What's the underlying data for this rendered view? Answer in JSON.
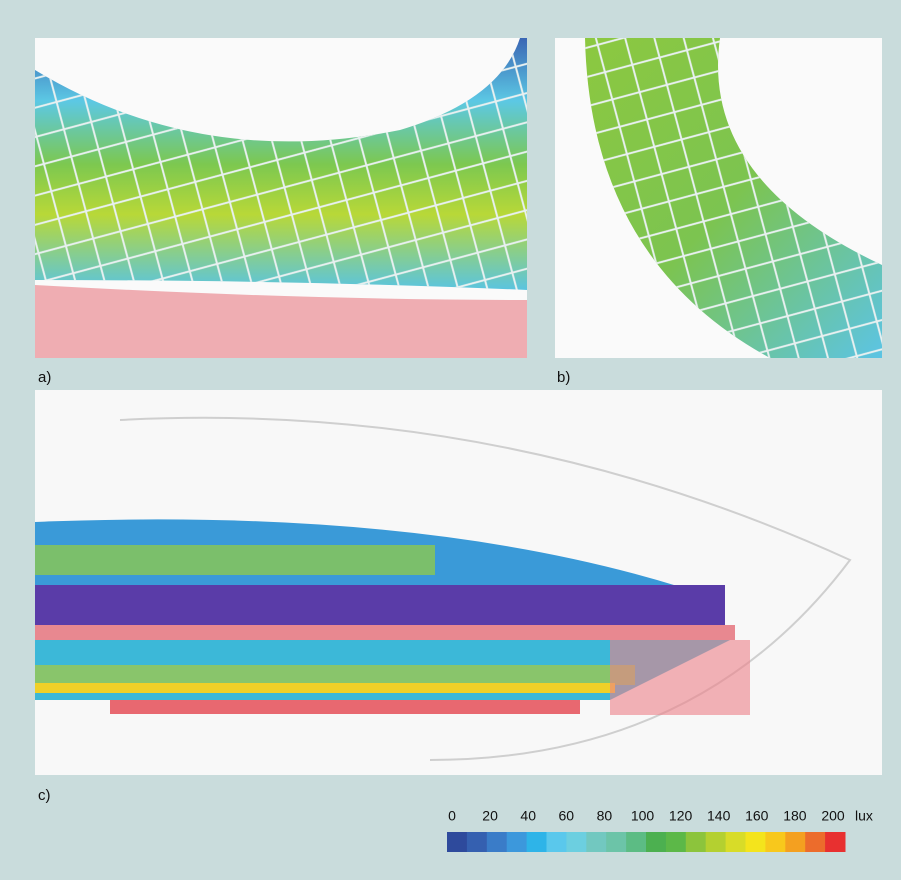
{
  "panels": {
    "a": {
      "label": "a)"
    },
    "b": {
      "label": "b)"
    },
    "c": {
      "label": "c)"
    }
  },
  "legend": {
    "ticks": [
      0,
      20,
      40,
      60,
      80,
      100,
      120,
      140,
      160,
      180,
      200
    ],
    "unit": "lux",
    "colors": [
      "#2e4a9c",
      "#3560b0",
      "#3a7cc8",
      "#3c98dc",
      "#2eb4e8",
      "#5ac8ec",
      "#6ccfe0",
      "#72c8c0",
      "#6cc4a8",
      "#5cbc84",
      "#4cb050",
      "#5cb848",
      "#8cc43c",
      "#b4d030",
      "#d8dc28",
      "#f4e41c",
      "#f8c81c",
      "#f4a020",
      "#ec6c2c",
      "#e83030"
    ]
  }
}
